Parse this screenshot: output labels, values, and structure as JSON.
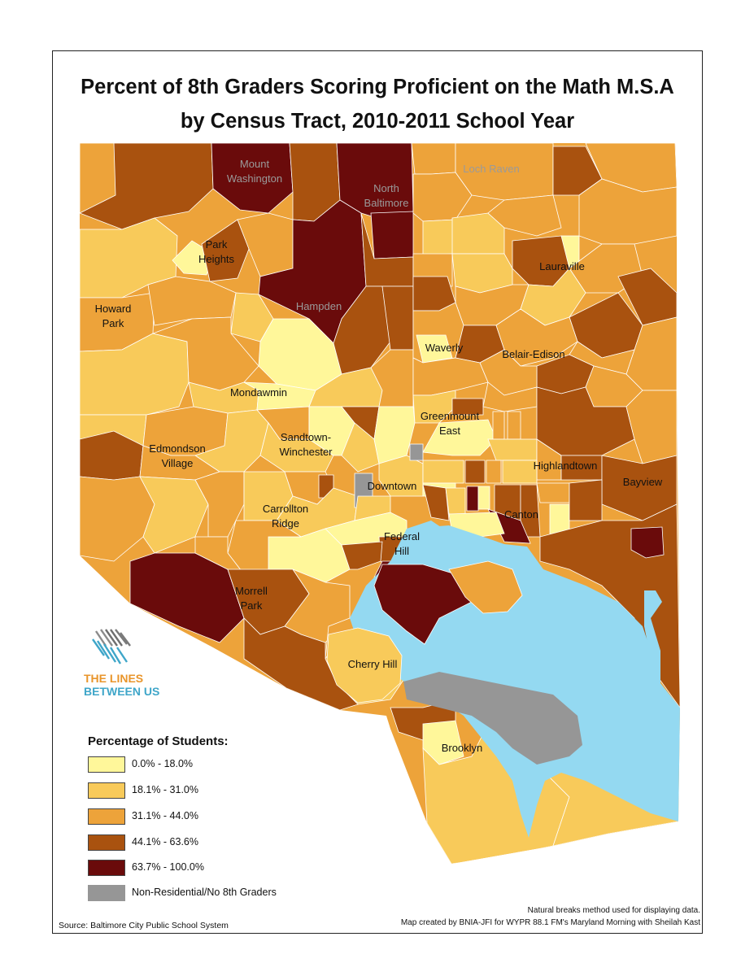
{
  "title": {
    "line1": "Percent of 8th Graders Scoring Proficient on the Math M.S.A",
    "line2": "by Census Tract,  2010-2011 School Year"
  },
  "colors": {
    "class1": "#fff79a",
    "class2": "#f8ca5a",
    "class3": "#eda33a",
    "class4": "#a9520f",
    "class5": "#6a0b0b",
    "nodata": "#969696",
    "water": "#94d9f1",
    "tract_border": "#ffffff"
  },
  "neighborhoods": [
    {
      "name": "Mount\nWashington",
      "style": "grey"
    },
    {
      "name": "North\nBaltimore",
      "style": "grey"
    },
    {
      "name": "Loch Raven",
      "style": "grey"
    },
    {
      "name": "Park\nHeights",
      "style": "dark"
    },
    {
      "name": "Lauraville",
      "style": "dark"
    },
    {
      "name": "Howard\nPark",
      "style": "dark"
    },
    {
      "name": "Hampden",
      "style": "grey"
    },
    {
      "name": "Waverly",
      "style": "dark"
    },
    {
      "name": "Belair-Edison",
      "style": "dark"
    },
    {
      "name": "Mondawmin",
      "style": "dark"
    },
    {
      "name": "Greenmount\nEast",
      "style": "dark"
    },
    {
      "name": "Sandtown-\nWinchester",
      "style": "dark"
    },
    {
      "name": "Edmondson\nVillage",
      "style": "dark"
    },
    {
      "name": "Highlandtown",
      "style": "dark"
    },
    {
      "name": "Downtown",
      "style": "dark"
    },
    {
      "name": "Bayview",
      "style": "dark"
    },
    {
      "name": "Carrollton\nRidge",
      "style": "dark"
    },
    {
      "name": "Canton",
      "style": "dark"
    },
    {
      "name": "Federal\nHill",
      "style": "dark"
    },
    {
      "name": "Morrell\nPark",
      "style": "dark"
    },
    {
      "name": "Cherry Hill",
      "style": "dark"
    },
    {
      "name": "Brooklyn",
      "style": "dark"
    }
  ],
  "legend": {
    "title": "Percentage of Students:",
    "items": [
      {
        "label": "0.0% - 18.0%",
        "color": "#fff79a"
      },
      {
        "label": "18.1% - 31.0%",
        "color": "#f8ca5a"
      },
      {
        "label": "31.1% - 44.0%",
        "color": "#eda33a"
      },
      {
        "label": "44.1% - 63.6%",
        "color": "#a9520f"
      },
      {
        "label": "63.7% - 100.0%",
        "color": "#6a0b0b"
      },
      {
        "label": "Non-Residential/No 8th Graders",
        "color": "#969696"
      }
    ]
  },
  "logo": {
    "line1": "THE LINES",
    "line2": "BETWEEN US"
  },
  "notes": {
    "method": "Natural breaks method used for displaying data.",
    "credit": "Map created by BNIA-JFI for WYPR 88.1 FM's Maryland Morning with Sheilah Kast",
    "source": "Source: Baltimore City Public School System"
  }
}
